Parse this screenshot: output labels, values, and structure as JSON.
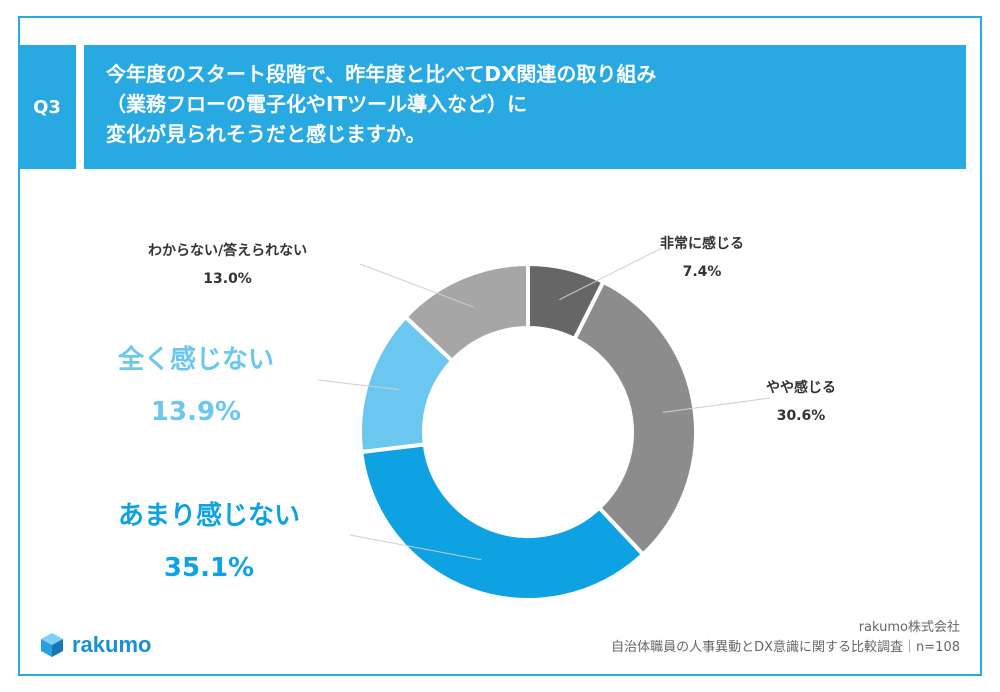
{
  "question": {
    "tag": "Q3",
    "lines": [
      "今年度のスタート段階で、昨年度と比べてDX関連の取り組み",
      "（業務フローの電子化やITツール導入など）に",
      "変化が見られそうだと感じますか。"
    ]
  },
  "chart_data": {
    "type": "pie",
    "donut": true,
    "categories": [
      "非常に感じる",
      "やや感じる",
      "あまり感じない",
      "全く感じない",
      "わからない/答えられない"
    ],
    "values": [
      7.4,
      30.6,
      35.1,
      13.9,
      13.0
    ],
    "labels": [
      "7.4%",
      "30.6%",
      "35.1%",
      "13.9%",
      "13.0%"
    ],
    "colors": [
      "#666666",
      "#8c8c8c",
      "#0ea2e2",
      "#6cc7f0",
      "#a6a6a6"
    ]
  },
  "label_colors": {
    "dark": "#333333",
    "blue": "#0ea2e2",
    "light_blue": "#6cc7f0"
  },
  "footer": {
    "company": "rakumo株式会社",
    "survey": "自治体職員の人事異動とDX意識に関する比較調査｜n=108"
  },
  "logo": {
    "text": "rakumo",
    "icon": "cube-icon"
  }
}
